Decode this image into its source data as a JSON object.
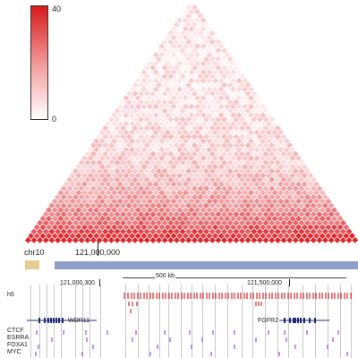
{
  "colorbar": {
    "max_label": "40",
    "min_label": "0",
    "colors": {
      "high": "#d7191c",
      "low": "#ffffff"
    }
  },
  "chromosome": "chr10",
  "ruler": {
    "major_label": "121,000,000",
    "minor_labels": [
      "121,000,300",
      "121,500,000"
    ],
    "scale_label": "500 kb"
  },
  "tracks": {
    "h5": "h5",
    "genes": [
      "WDR11",
      "FGFR2"
    ],
    "motifs": [
      "CTCF",
      "ESRRA",
      "FOXA1",
      "MYC"
    ]
  },
  "colors": {
    "heatmap": "#e0191f",
    "tad_left": "#e6cc91",
    "tad_main": "#8d9fc7",
    "gene": "#1f2a7a",
    "peak": "#cc0000",
    "motif": "#8a2be2"
  }
}
